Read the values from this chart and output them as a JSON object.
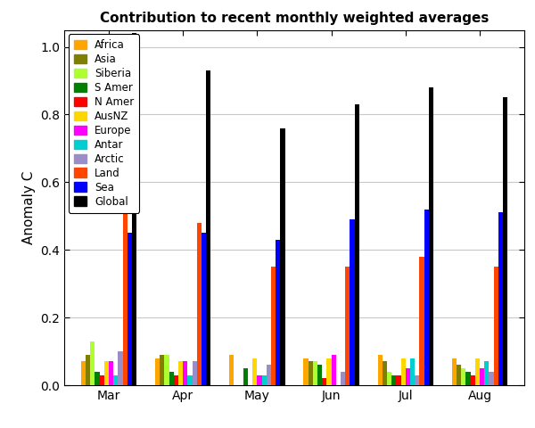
{
  "title": "Contribution to recent monthly weighted averages",
  "ylabel": "Anomaly C",
  "months": [
    "Mar",
    "Apr",
    "May",
    "Jun",
    "Jul",
    "Aug"
  ],
  "series": {
    "Africa": [
      0.07,
      0.08,
      0.09,
      0.08,
      0.09,
      0.08
    ],
    "Asia": [
      0.09,
      0.09,
      0.0,
      0.07,
      0.07,
      0.06
    ],
    "Siberia": [
      0.13,
      0.09,
      0.0,
      0.07,
      0.04,
      0.05
    ],
    "S Amer": [
      0.04,
      0.04,
      0.05,
      0.06,
      0.03,
      0.04
    ],
    "N Amer": [
      0.03,
      0.03,
      0.0,
      0.02,
      0.03,
      0.03
    ],
    "AusNZ": [
      0.07,
      0.07,
      0.08,
      0.08,
      0.08,
      0.08
    ],
    "Europe": [
      0.07,
      0.07,
      0.03,
      0.09,
      0.05,
      0.05
    ],
    "Antar": [
      0.03,
      0.03,
      0.03,
      -0.02,
      0.08,
      0.07
    ],
    "Arctic": [
      0.1,
      0.07,
      0.06,
      0.04,
      0.03,
      0.04
    ],
    "Land": [
      0.59,
      0.48,
      0.35,
      0.35,
      0.38,
      0.35
    ],
    "Sea": [
      0.45,
      0.45,
      0.43,
      0.49,
      0.52,
      0.51
    ],
    "Global": [
      1.04,
      0.93,
      0.76,
      0.83,
      0.88,
      0.85
    ]
  },
  "colors": {
    "Africa": "#FFA500",
    "Asia": "#808000",
    "Siberia": "#ADFF2F",
    "S Amer": "#008000",
    "N Amer": "#FF0000",
    "AusNZ": "#FFD700",
    "Europe": "#FF00FF",
    "Antar": "#00CED1",
    "Arctic": "#9B8DC8",
    "Land": "#FF4500",
    "Sea": "#0000FF",
    "Global": "#000000"
  },
  "ylim": [
    0.0,
    1.05
  ],
  "yticks": [
    0.0,
    0.2,
    0.4,
    0.6,
    0.8,
    1.0
  ],
  "bg_color": "#FFFFFF",
  "plot_bg_color": "#FFFFFF",
  "grid_color": "#C8C8C8",
  "figsize": [
    6.0,
    4.8
  ],
  "dpi": 100
}
